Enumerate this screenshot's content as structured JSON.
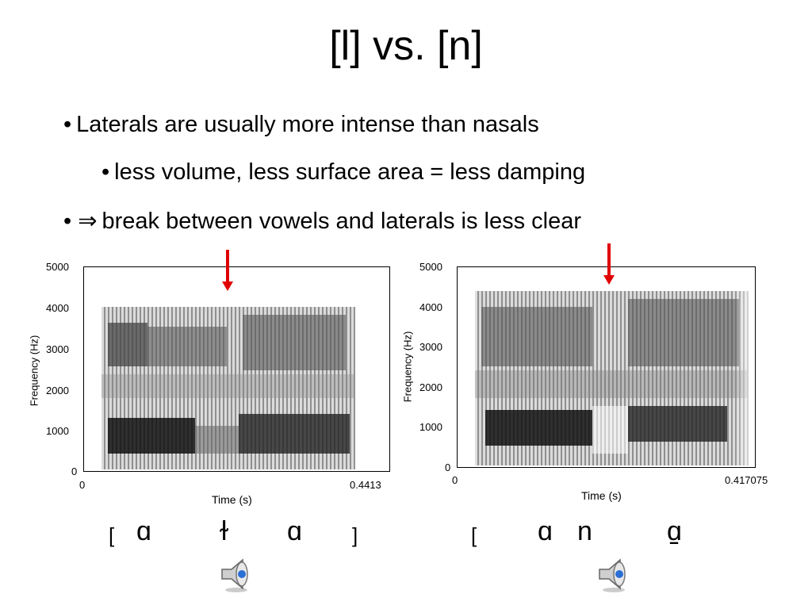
{
  "slide": {
    "title": "[l] vs. [n]",
    "bullets": [
      {
        "mark": "•",
        "text": "Laterals are usually more intense than nasals"
      },
      {
        "mark": "•",
        "text": "less volume, less surface area = less damping"
      },
      {
        "mark": "• ⇒",
        "text": "break between vowels and laterals is less clear"
      }
    ]
  },
  "spectrograms": [
    {
      "ylabel": "Frequency (Hz)",
      "xlabel": "Time (s)",
      "yticks": [
        "5000",
        "4000",
        "3000",
        "2000",
        "1000",
        "0"
      ],
      "xstart": "0",
      "xend": "0.4413",
      "transcription": {
        "open": "[",
        "close": "]",
        "seg1": "ɑ",
        "seg2": "ɫ",
        "seg3": "ɑ"
      }
    },
    {
      "ylabel": "Frequency (Hz)",
      "xlabel": "Time (s)",
      "yticks": [
        "5000",
        "4000",
        "3000",
        "2000",
        "1000",
        "0"
      ],
      "xstart": "0",
      "xend": "0.417075",
      "transcription": {
        "open": "[",
        "seg1": "ɑ",
        "seg2": "n",
        "seg3": "ɑ̠"
      }
    }
  ],
  "icons": {
    "speaker": "speaker-icon",
    "arrow": "red-down-arrow-icon"
  },
  "colors": {
    "arrow": "#e00000"
  }
}
